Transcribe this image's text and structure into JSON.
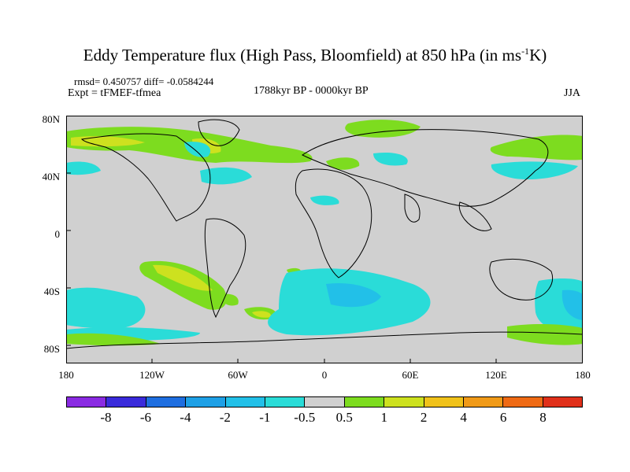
{
  "title_main": "Eddy Temperature flux (High Pass, Bloomfield) at 850 hPa (in ms",
  "title_sup": "-1",
  "title_end": "K)",
  "stats": "rmsd= 0.450757 diff= -0.0584244",
  "experiment": "Expt = tFMEF-tfmea",
  "period": "1788kyr BP - 0000kyr BP",
  "season": "JJA",
  "lat_labels": [
    "80N",
    "40N",
    "0",
    "40S",
    "80S"
  ],
  "lon_labels": [
    "180",
    "120W",
    "60W",
    "0",
    "60E",
    "120E",
    "180"
  ],
  "legend": {
    "colors": [
      "#8a2be2",
      "#3a2bdb",
      "#1e6ee0",
      "#1ea0e6",
      "#22c0e8",
      "#2adcd8",
      "#d0d0d0",
      "#7ddc1f",
      "#cde11f",
      "#f0c21a",
      "#f09a18",
      "#ef6a14",
      "#e0301a"
    ],
    "labels": [
      "-8",
      "-6",
      "-4",
      "-2",
      "-1",
      "-0.5",
      "0.5",
      "1",
      "2",
      "4",
      "6",
      "8"
    ]
  },
  "map_colors": {
    "neutral": "#d0d0d0",
    "green": "#7ddc1f",
    "yellow": "#cde11f",
    "cyan": "#2adcd8",
    "lightblue": "#22c0e8",
    "coast": "#000000"
  }
}
